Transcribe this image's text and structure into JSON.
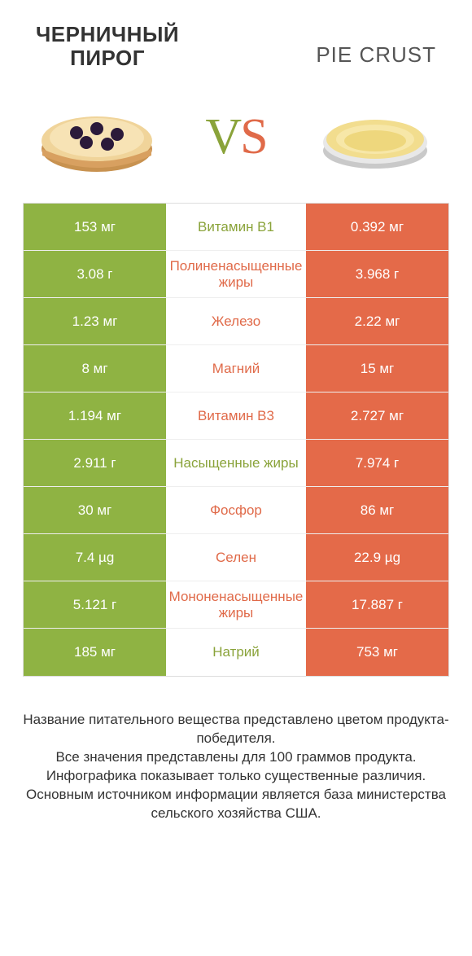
{
  "colors": {
    "left": "#8fb343",
    "right": "#e46a49",
    "leftText": "#8aa33a",
    "rightText": "#e06a49",
    "white": "#ffffff"
  },
  "header": {
    "leftTitle": "ЧЕРНИЧНЫЙ\nПИРОГ",
    "rightTitle": "PIE CRUST",
    "vsV": "V",
    "vsS": "S"
  },
  "rows": [
    {
      "left": "153 мг",
      "label": "Витамин B1",
      "right": "0.392 мг",
      "winner": "left"
    },
    {
      "left": "3.08 г",
      "label": "Полиненасыщенные жиры",
      "right": "3.968 г",
      "winner": "right"
    },
    {
      "left": "1.23 мг",
      "label": "Железо",
      "right": "2.22 мг",
      "winner": "right"
    },
    {
      "left": "8 мг",
      "label": "Магний",
      "right": "15 мг",
      "winner": "right"
    },
    {
      "left": "1.194 мг",
      "label": "Витамин B3",
      "right": "2.727 мг",
      "winner": "right"
    },
    {
      "left": "2.911 г",
      "label": "Насыщенные жиры",
      "right": "7.974 г",
      "winner": "left"
    },
    {
      "left": "30 мг",
      "label": "Фосфор",
      "right": "86 мг",
      "winner": "right"
    },
    {
      "left": "7.4 µg",
      "label": "Селен",
      "right": "22.9 µg",
      "winner": "right"
    },
    {
      "left": "5.121 г",
      "label": "Мононенасыщенные жиры",
      "right": "17.887 г",
      "winner": "right"
    },
    {
      "left": "185 мг",
      "label": "Натрий",
      "right": "753 мг",
      "winner": "left"
    }
  ],
  "footer": "Название питательного вещества представлено цветом продукта-победителя.\nВсе значения представлены для 100 граммов продукта.\nИнфографика показывает только существенные различия.\nОсновным источником информации является база министерства сельского хозяйства США."
}
